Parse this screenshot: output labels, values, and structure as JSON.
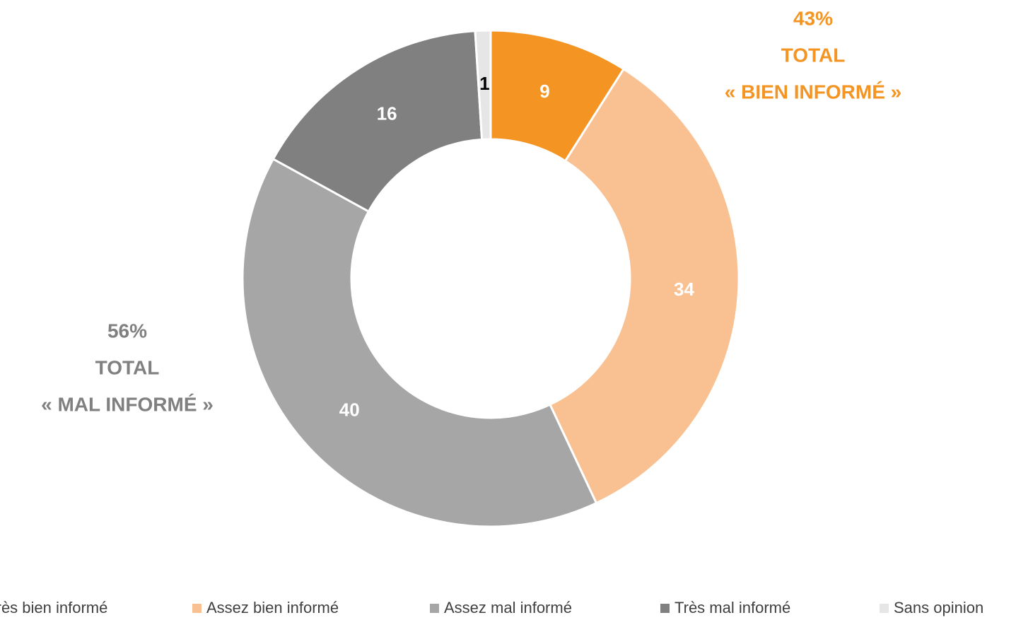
{
  "chart_data": {
    "type": "donut",
    "categories": [
      "Très bien informé",
      "Assez bien informé",
      "Assez mal informé",
      "Très mal informé",
      "Sans opinion"
    ],
    "values": [
      9,
      34,
      40,
      16,
      1
    ],
    "colors": [
      "#F39423",
      "#F9C191",
      "#A6A6A6",
      "#808080",
      "#E6E6E6"
    ],
    "label_colors": [
      "#ffffff",
      "#ffffff",
      "#ffffff",
      "#ffffff",
      "#000000"
    ],
    "annotations": [
      {
        "lines": [
          "43%",
          "TOTAL",
          "« BIEN INFORMÉ »"
        ],
        "color": "#F39423"
      },
      {
        "lines": [
          "56%",
          "TOTAL",
          "« MAL INFORMÉ »"
        ],
        "color": "#808080"
      }
    ],
    "legend": "bottom"
  }
}
